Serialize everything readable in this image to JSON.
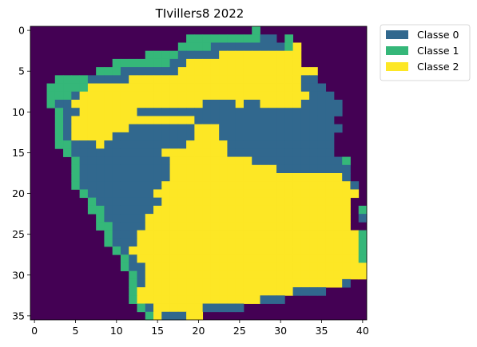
{
  "chart_data": {
    "type": "heatmap",
    "title": "TIvillers8 2022",
    "xlabel": "",
    "ylabel": "",
    "xlim": [
      -0.5,
      40.5
    ],
    "ylim": [
      35.5,
      -0.5
    ],
    "xticks": [
      0,
      5,
      10,
      15,
      20,
      25,
      30,
      35,
      40
    ],
    "yticks": [
      0,
      5,
      10,
      15,
      20,
      25,
      30,
      35
    ],
    "grid": false,
    "legend_position": "outside-top-right",
    "background_color": "#440154",
    "legend": [
      {
        "name": "Classe 0",
        "color": "#31688e"
      },
      {
        "name": "Classe 1",
        "color": "#35b779"
      },
      {
        "name": "Classe 2",
        "color": "#fde725"
      }
    ],
    "color_map": {
      "0": "#31688e",
      "1": "#35b779",
      "2": "#fde725"
    },
    "grid_rows": [
      "...........................1.............",
      "...................11111111100.1.........",
      "..................111100000000012........",
      "..............1111000002222222222........",
      "..........11111110022222222222222........",
      "........111000000022222222222222222......",
      "...11110000022222222222222222222200......",
      "..1111122222222222222222222222222000.....",
      "..11102222222222222222222222222222000....",
      "..100222222222222222200002002222200000...",
      "...10022222220000000000000000000000000...",
      "...1022222222222222200000000000000000....",
      "...10222222200000000222000000000000000...",
      "...1022222000000000022200000000000000....",
      "...1100020000000000222220000000000000....",
      "....100000000000222222220000000000000....",
      ".....1000000000002222222222000000000001..",
      ".....1000000000002222222222222000000000..",
      ".....1000000000002222222222222222222220..",
      ".....10000000000222222222222222222222220.",
      "......1000000002222222222222222222222222.",
      ".......10000000022222222222222222222222..",
      ".......11000000222222222222222222222222.1",
      "........1000002222222222222222222222222.0",
      "........1100002222222222222222222222222..",
      ".........10002222222222222222222222222221",
      ".........10002222222222222222222222222221",
      "..........1022222222222222222222222222221",
      "...........102222222222222222222222222221",
      "...........1002222222222222222222222222222",
      "............102222222222222222222222222222",
      "............102222222222222222222222220.....",
      "............122222222222222222220000.....",
      "............1222222222222222000..........",
      ".............1022222200000...............",
      "..............1200022....................",
      "..............1.........................."
    ]
  }
}
